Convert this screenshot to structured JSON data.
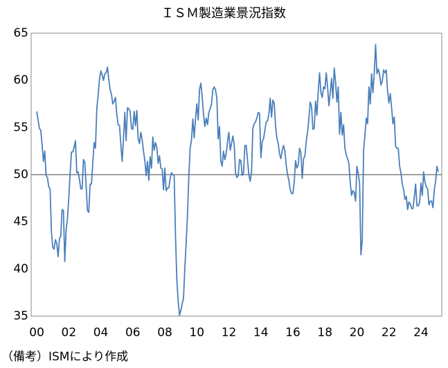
{
  "chart_data": {
    "type": "line",
    "title": "ＩＳＭ製造業景況指数",
    "note": "（備考）ISMにより作成",
    "xlim": [
      1999.65,
      2025.3
    ],
    "xticks": [
      {
        "value": 2000,
        "label": "00"
      },
      {
        "value": 2002,
        "label": "02"
      },
      {
        "value": 2004,
        "label": "04"
      },
      {
        "value": 2006,
        "label": "06"
      },
      {
        "value": 2008,
        "label": "08"
      },
      {
        "value": 2010,
        "label": "10"
      },
      {
        "value": 2012,
        "label": "12"
      },
      {
        "value": 2014,
        "label": "14"
      },
      {
        "value": 2016,
        "label": "16"
      },
      {
        "value": 2018,
        "label": "18"
      },
      {
        "value": 2020,
        "label": "20"
      },
      {
        "value": 2022,
        "label": "22"
      },
      {
        "value": 2024,
        "label": "24"
      }
    ],
    "ylim": [
      35,
      65
    ],
    "yticks": [
      35,
      40,
      45,
      50,
      55,
      60,
      65
    ],
    "reference_line": 50,
    "reference_color": "#808080",
    "x": [
      2000,
      2000.083,
      2000.167,
      2000.25,
      2000.333,
      2000.417,
      2000.5,
      2000.583,
      2000.667,
      2000.75,
      2000.833,
      2000.917,
      2001,
      2001.083,
      2001.167,
      2001.25,
      2001.333,
      2001.417,
      2001.5,
      2001.583,
      2001.667,
      2001.75,
      2001.833,
      2001.917,
      2002,
      2002.083,
      2002.167,
      2002.25,
      2002.333,
      2002.417,
      2002.5,
      2002.583,
      2002.667,
      2002.75,
      2002.833,
      2002.917,
      2003,
      2003.083,
      2003.167,
      2003.25,
      2003.333,
      2003.417,
      2003.5,
      2003.583,
      2003.667,
      2003.75,
      2003.833,
      2003.917,
      2004,
      2004.083,
      2004.167,
      2004.25,
      2004.333,
      2004.417,
      2004.5,
      2004.583,
      2004.667,
      2004.75,
      2004.833,
      2004.917,
      2005,
      2005.083,
      2005.167,
      2005.25,
      2005.333,
      2005.417,
      2005.5,
      2005.583,
      2005.667,
      2005.75,
      2005.833,
      2005.917,
      2006,
      2006.083,
      2006.167,
      2006.25,
      2006.333,
      2006.417,
      2006.5,
      2006.583,
      2006.667,
      2006.75,
      2006.833,
      2006.917,
      2007,
      2007.083,
      2007.167,
      2007.25,
      2007.333,
      2007.417,
      2007.5,
      2007.583,
      2007.667,
      2007.75,
      2007.833,
      2007.917,
      2008,
      2008.083,
      2008.167,
      2008.25,
      2008.333,
      2008.417,
      2008.5,
      2008.583,
      2008.667,
      2008.75,
      2008.833,
      2008.917,
      2009,
      2009.083,
      2009.167,
      2009.25,
      2009.333,
      2009.417,
      2009.5,
      2009.583,
      2009.667,
      2009.75,
      2009.833,
      2009.917,
      2010,
      2010.083,
      2010.167,
      2010.25,
      2010.333,
      2010.417,
      2010.5,
      2010.583,
      2010.667,
      2010.75,
      2010.833,
      2010.917,
      2011,
      2011.083,
      2011.167,
      2011.25,
      2011.333,
      2011.417,
      2011.5,
      2011.583,
      2011.667,
      2011.75,
      2011.833,
      2011.917,
      2012,
      2012.083,
      2012.167,
      2012.25,
      2012.333,
      2012.417,
      2012.5,
      2012.583,
      2012.667,
      2012.75,
      2012.833,
      2012.917,
      2013,
      2013.083,
      2013.167,
      2013.25,
      2013.333,
      2013.417,
      2013.5,
      2013.583,
      2013.667,
      2013.75,
      2013.833,
      2013.917,
      2014,
      2014.083,
      2014.167,
      2014.25,
      2014.333,
      2014.417,
      2014.5,
      2014.583,
      2014.667,
      2014.75,
      2014.833,
      2014.917,
      2015,
      2015.083,
      2015.167,
      2015.25,
      2015.333,
      2015.417,
      2015.5,
      2015.583,
      2015.667,
      2015.75,
      2015.833,
      2015.917,
      2016,
      2016.083,
      2016.167,
      2016.25,
      2016.333,
      2016.417,
      2016.5,
      2016.583,
      2016.667,
      2016.75,
      2016.833,
      2016.917,
      2017,
      2017.083,
      2017.167,
      2017.25,
      2017.333,
      2017.417,
      2017.5,
      2017.583,
      2017.667,
      2017.75,
      2017.833,
      2017.917,
      2018,
      2018.083,
      2018.167,
      2018.25,
      2018.333,
      2018.417,
      2018.5,
      2018.583,
      2018.667,
      2018.75,
      2018.833,
      2018.917,
      2019,
      2019.083,
      2019.167,
      2019.25,
      2019.333,
      2019.417,
      2019.5,
      2019.583,
      2019.667,
      2019.75,
      2019.833,
      2019.917,
      2020,
      2020.083,
      2020.167,
      2020.25,
      2020.333,
      2020.417,
      2020.5,
      2020.583,
      2020.667,
      2020.75,
      2020.833,
      2020.917,
      2021,
      2021.083,
      2021.167,
      2021.25,
      2021.333,
      2021.417,
      2021.5,
      2021.583,
      2021.667,
      2021.75,
      2021.833,
      2021.917,
      2022,
      2022.083,
      2022.167,
      2022.25,
      2022.333,
      2022.417,
      2022.5,
      2022.583,
      2022.667,
      2022.75,
      2022.833,
      2022.917,
      2023,
      2023.083,
      2023.167,
      2023.25,
      2023.333,
      2023.417,
      2023.5,
      2023.583,
      2023.667,
      2023.75,
      2023.833,
      2023.917,
      2024,
      2024.083,
      2024.167,
      2024.25,
      2024.333,
      2024.417,
      2024.5,
      2024.583,
      2024.667,
      2024.75,
      2024.833,
      2024.917,
      2025,
      2025.083
    ],
    "series": [
      {
        "color": "#4a7ebb",
        "values": [
          56.7,
          55.8,
          54.9,
          54.7,
          53.2,
          51.4,
          52.5,
          49.9,
          49.7,
          48.7,
          48.5,
          43.9,
          42.3,
          42.1,
          43.1,
          42.7,
          41.3,
          43.2,
          43.5,
          46.3,
          46.2,
          40.8,
          44.1,
          45.3,
          47.5,
          50.1,
          52.4,
          52.4,
          52.9,
          53.6,
          50.2,
          50.3,
          49.5,
          48.5,
          48.5,
          51.6,
          51.3,
          48.9,
          46.2,
          46.0,
          49.0,
          49.0,
          51.3,
          53.4,
          52.8,
          57.0,
          58.4,
          60.1,
          61.0,
          60.6,
          60.0,
          60.7,
          60.8,
          61.4,
          60.1,
          59.0,
          58.5,
          57.5,
          57.8,
          58.2,
          56.4,
          55.3,
          55.2,
          53.3,
          51.4,
          53.8,
          56.6,
          53.6,
          57.1,
          57.0,
          56.7,
          54.9,
          54.8,
          56.7,
          55.2,
          56.8,
          53.8,
          53.3,
          54.5,
          53.7,
          52.5,
          51.5,
          49.9,
          51.4,
          49.4,
          51.9,
          50.7,
          54.0,
          52.6,
          53.4,
          52.9,
          51.2,
          52.0,
          50.7,
          50.6,
          48.4,
          50.7,
          48.3,
          48.6,
          48.6,
          49.6,
          50.2,
          50.0,
          49.9,
          43.5,
          38.9,
          36.6,
          35.1,
          35.6,
          36.3,
          36.9,
          40.1,
          42.8,
          45.8,
          49.9,
          52.8,
          53.7,
          55.9,
          53.9,
          55.9,
          57.5,
          55.8,
          59.0,
          59.7,
          58.3,
          56.4,
          55.1,
          56.0,
          55.3,
          56.6,
          57.0,
          57.5,
          59.0,
          59.3,
          59.0,
          58.1,
          53.8,
          55.1,
          51.4,
          50.9,
          52.5,
          51.6,
          52.2,
          53.5,
          54.5,
          52.6,
          53.3,
          54.1,
          53.2,
          50.2,
          49.7,
          49.9,
          51.6,
          51.5,
          49.9,
          50.2,
          53.1,
          53.1,
          51.5,
          50.0,
          49.3,
          50.3,
          54.9,
          55.4,
          55.6,
          56.0,
          56.6,
          56.5,
          51.8,
          53.5,
          53.8,
          54.7,
          55.6,
          55.7,
          56.4,
          58.1,
          56.1,
          57.9,
          57.6,
          55.1,
          53.9,
          53.3,
          52.2,
          51.7,
          52.6,
          53.1,
          52.5,
          51.0,
          50.0,
          49.4,
          48.4,
          48.0,
          48.0,
          49.2,
          51.5,
          50.7,
          51.0,
          52.8,
          52.3,
          49.6,
          51.7,
          52.0,
          53.5,
          54.5,
          56.0,
          57.7,
          57.2,
          54.8,
          54.9,
          57.8,
          56.3,
          58.8,
          60.8,
          58.7,
          58.2,
          59.3,
          59.1,
          60.8,
          59.3,
          57.3,
          58.7,
          60.2,
          58.1,
          61.3,
          59.8,
          57.7,
          59.3,
          54.3,
          56.6,
          54.2,
          55.3,
          52.8,
          52.1,
          51.7,
          51.2,
          49.1,
          47.8,
          48.3,
          48.1,
          47.2,
          50.9,
          50.1,
          49.1,
          41.5,
          43.1,
          52.6,
          54.2,
          56.0,
          55.4,
          59.3,
          57.5,
          60.7,
          58.7,
          60.8,
          63.8,
          60.7,
          61.2,
          60.6,
          59.5,
          59.9,
          61.1,
          60.8,
          61.1,
          58.8,
          57.6,
          58.6,
          57.1,
          55.4,
          56.1,
          53.0,
          52.8,
          52.8,
          50.9,
          50.2,
          49.0,
          48.4,
          47.4,
          47.7,
          46.3,
          47.1,
          46.9,
          46.4,
          46.4,
          47.6,
          49.0,
          46.7,
          46.7,
          47.1,
          49.1,
          47.8,
          50.3,
          49.2,
          48.7,
          48.5,
          46.8,
          47.2,
          47.2,
          46.5,
          48.4,
          49.3,
          50.9,
          50.3
        ]
      }
    ]
  }
}
